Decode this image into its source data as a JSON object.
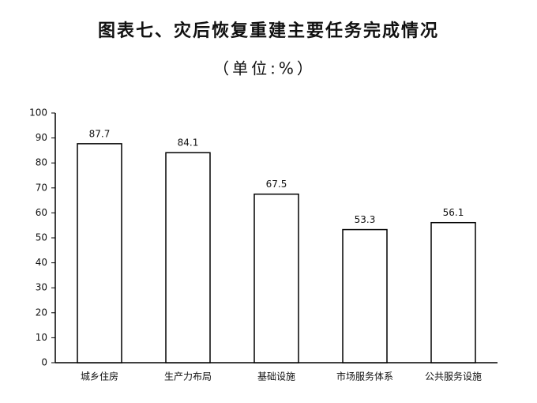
{
  "chart_data": {
    "type": "bar",
    "title": "图表七、灾后恢复重建主要任务完成情况",
    "subtitle": "（单位:%）",
    "categories": [
      "城乡住房",
      "生产力布局",
      "基础设施",
      "市场服务体系",
      "公共服务设施"
    ],
    "values": [
      87.7,
      84.1,
      67.5,
      53.3,
      56.1
    ],
    "color": "#ffffff",
    "ylim": [
      0,
      100
    ],
    "yticks": [
      0,
      10,
      20,
      30,
      40,
      50,
      60,
      70,
      80,
      90,
      100
    ],
    "grid": false
  }
}
